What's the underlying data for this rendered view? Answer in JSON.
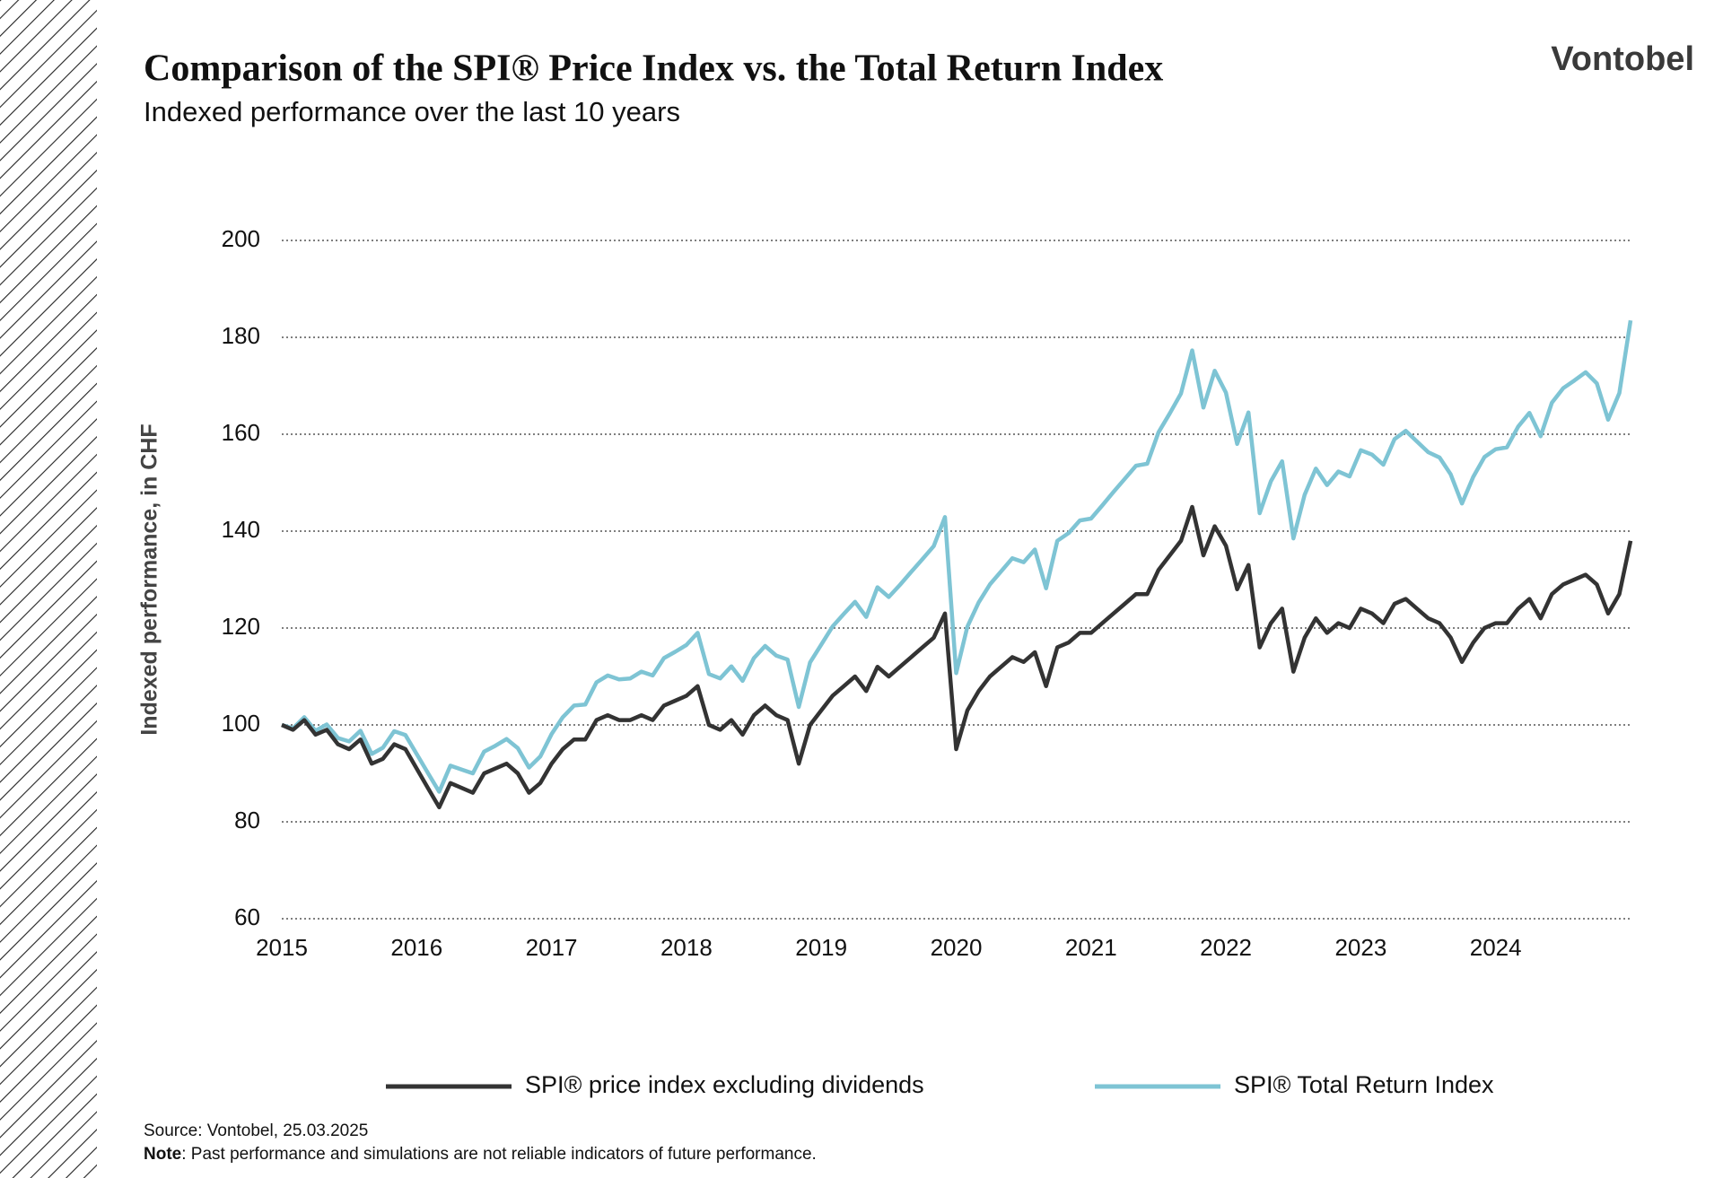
{
  "chart_data": {
    "type": "line",
    "title": "Comparison of the SPI® Price Index vs. the Total Return Index",
    "subtitle": "Indexed performance over the last 10 years",
    "brand": "Vontobel",
    "y_label": "Indexed performance, in CHF",
    "source": "Source: Vontobel, 25.03.2025",
    "note_label": "Note",
    "note_text": ": Past performance and simulations are not reliable indicators of future performance.",
    "ylim": [
      60,
      200
    ],
    "yticks": [
      60,
      80,
      100,
      120,
      140,
      160,
      180,
      200
    ],
    "grid": true,
    "categories": [
      "2015",
      null,
      null,
      null,
      null,
      null,
      null,
      null,
      null,
      null,
      null,
      null,
      "2016",
      null,
      null,
      null,
      null,
      null,
      null,
      null,
      null,
      null,
      null,
      null,
      "2017",
      null,
      null,
      null,
      null,
      null,
      null,
      null,
      null,
      null,
      null,
      null,
      "2018",
      null,
      null,
      null,
      null,
      null,
      null,
      null,
      null,
      null,
      null,
      null,
      "2019",
      null,
      null,
      null,
      null,
      null,
      null,
      null,
      null,
      null,
      null,
      null,
      "2020",
      null,
      null,
      null,
      null,
      null,
      null,
      null,
      null,
      null,
      null,
      null,
      "2021",
      null,
      null,
      null,
      null,
      null,
      null,
      null,
      null,
      null,
      null,
      null,
      "2022",
      null,
      null,
      null,
      null,
      null,
      null,
      null,
      null,
      null,
      null,
      null,
      "2023",
      null,
      null,
      null,
      null,
      null,
      null,
      null,
      null,
      null,
      null,
      null,
      "2024",
      null,
      null,
      null,
      null,
      null,
      null,
      null,
      null,
      null,
      null,
      null,
      null
    ],
    "series": [
      {
        "name": "SPI® price index excluding dividends",
        "color": "#333333",
        "values": [
          100,
          99,
          101,
          98,
          99,
          96,
          95,
          97,
          92,
          93,
          96,
          95,
          91,
          87,
          83,
          88,
          87,
          86,
          90,
          91,
          92,
          90,
          86,
          88,
          92,
          95,
          97,
          97,
          101,
          102,
          101,
          101,
          102,
          101,
          104,
          105,
          106,
          108,
          100,
          99,
          101,
          98,
          102,
          104,
          102,
          101,
          92,
          100,
          103,
          106,
          108,
          110,
          107,
          112,
          110,
          112,
          114,
          116,
          118,
          123,
          95,
          103,
          107,
          110,
          112,
          114,
          113,
          115,
          108,
          116,
          117,
          119,
          119,
          121,
          123,
          125,
          127,
          127,
          132,
          135,
          138,
          145,
          135,
          141,
          137,
          128,
          133,
          116,
          121,
          124,
          111,
          118,
          122,
          119,
          121,
          120,
          124,
          123,
          121,
          125,
          126,
          124,
          122,
          121,
          118,
          113,
          117,
          120,
          121,
          121,
          124,
          126,
          122,
          127,
          129,
          130,
          131,
          129,
          123,
          127,
          138
        ]
      },
      {
        "name": "SPI® Total Return Index",
        "color": "#7ec4d4",
        "values": [
          100,
          99.3,
          101.6,
          98.8,
          100.1,
          97.3,
          96.6,
          98.8,
          94.0,
          95.3,
          98.7,
          97.9,
          94.0,
          90.1,
          86.2,
          91.6,
          90.8,
          90.0,
          94.5,
          95.7,
          97.1,
          95.2,
          91.2,
          93.5,
          98.1,
          101.6,
          104.0,
          104.2,
          108.8,
          110.2,
          109.4,
          109.6,
          111.0,
          110.2,
          113.8,
          115.1,
          116.5,
          119.0,
          110.5,
          109.6,
          112.1,
          109.1,
          113.8,
          116.3,
          114.3,
          113.5,
          103.7,
          112.9,
          116.6,
          120.3,
          122.9,
          125.4,
          122.3,
          128.4,
          126.4,
          128.9,
          131.6,
          134.2,
          136.9,
          142.9,
          110.7,
          120.3,
          125.3,
          129.0,
          131.7,
          134.4,
          133.6,
          136.2,
          128.2,
          138.0,
          139.6,
          142.2,
          142.6,
          145.3,
          148.1,
          150.8,
          153.5,
          153.9,
          160.4,
          164.3,
          168.4,
          177.3,
          165.5,
          173.1,
          168.6,
          158.0,
          164.5,
          143.7,
          150.3,
          154.4,
          138.5,
          147.5,
          152.9,
          149.5,
          152.3,
          151.3,
          156.7,
          155.8,
          153.7,
          159.0,
          160.7,
          158.5,
          156.3,
          155.2,
          151.7,
          145.7,
          151.2,
          155.3,
          156.9,
          157.3,
          161.6,
          164.4,
          159.6,
          166.5,
          169.5,
          171.1,
          172.8,
          170.5,
          163.0,
          168.5,
          183.5
        ]
      }
    ]
  }
}
